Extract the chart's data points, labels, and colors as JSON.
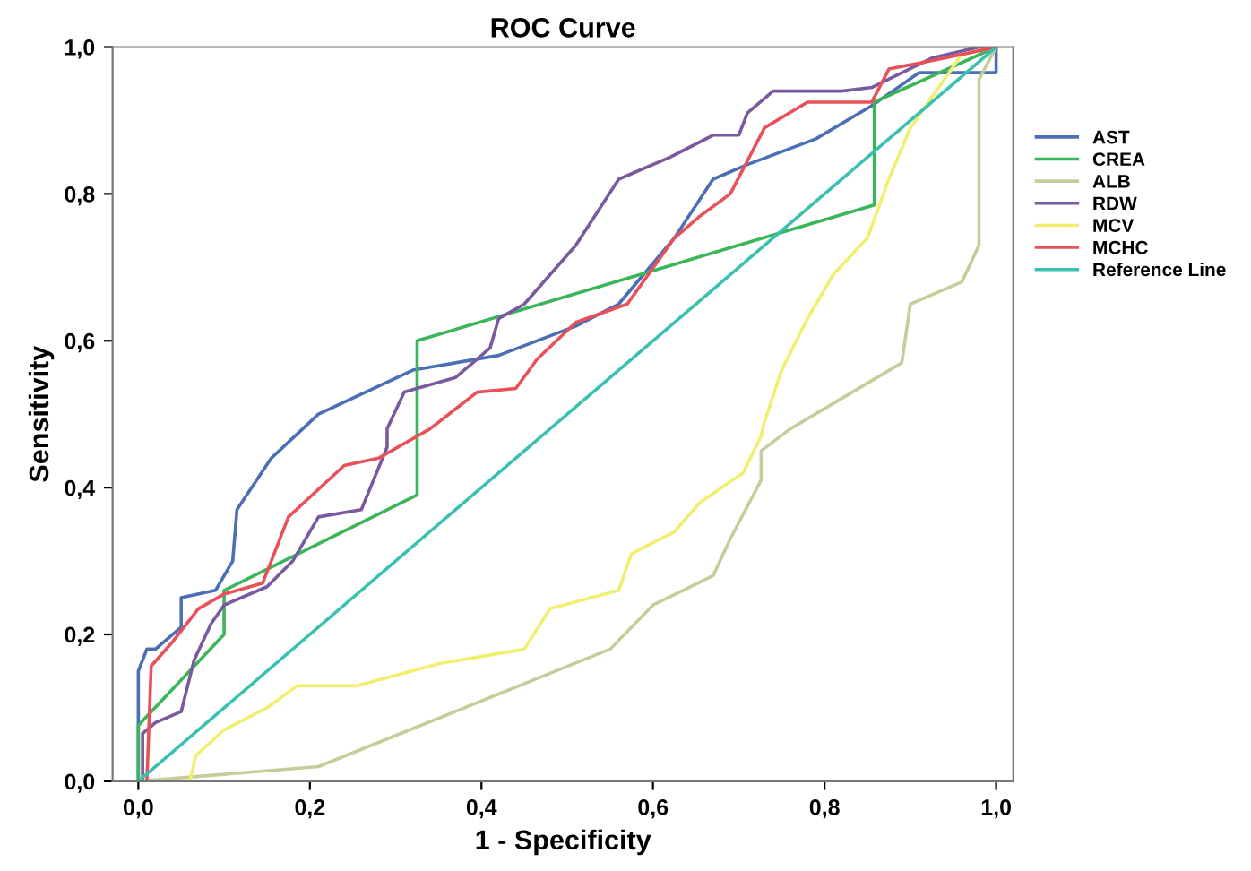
{
  "chart_data": {
    "type": "line",
    "title": "ROC Curve",
    "xlabel": "1 - Specificity",
    "ylabel": "Sensitivity",
    "xlim": [
      -0.03,
      1.02
    ],
    "ylim": [
      0,
      1
    ],
    "xticks": [
      {
        "value": 0,
        "label": "0,0"
      },
      {
        "value": 0.2,
        "label": "0,2"
      },
      {
        "value": 0.4,
        "label": "0,4"
      },
      {
        "value": 0.6,
        "label": "0,6"
      },
      {
        "value": 0.8,
        "label": "0,8"
      },
      {
        "value": 1,
        "label": "1,0"
      }
    ],
    "yticks": [
      {
        "value": 0,
        "label": "0,0"
      },
      {
        "value": 0.2,
        "label": "0,2"
      },
      {
        "value": 0.4,
        "label": "0,4"
      },
      {
        "value": 0.6,
        "label": "0,6"
      },
      {
        "value": 0.8,
        "label": "0,8"
      },
      {
        "value": 1,
        "label": "1,0"
      }
    ],
    "grid": false,
    "legend": "right",
    "marker": "none",
    "line_style": "solid",
    "series": [
      {
        "name": "AST",
        "color": "#4a6fb5",
        "x": [
          0,
          0,
          0.01,
          0.02,
          0.05,
          0.05,
          0.09,
          0.11,
          0.115,
          0.155,
          0.21,
          0.32,
          0.42,
          0.51,
          0.56,
          0.625,
          0.67,
          0.71,
          0.79,
          0.855,
          0.91,
          1,
          1
        ],
        "values": [
          0,
          0.15,
          0.18,
          0.18,
          0.21,
          0.25,
          0.26,
          0.3,
          0.37,
          0.44,
          0.5,
          0.56,
          0.58,
          0.62,
          0.65,
          0.74,
          0.82,
          0.84,
          0.875,
          0.92,
          0.965,
          0.965,
          1
        ]
      },
      {
        "name": "CREA",
        "color": "#3cb55a",
        "x": [
          0,
          0,
          0.1,
          0.1,
          0.325,
          0.325,
          0.858,
          0.858,
          1
        ],
        "values": [
          0,
          0.076,
          0.2,
          0.26,
          0.39,
          0.6,
          0.785,
          0.925,
          1
        ]
      },
      {
        "name": "ALB",
        "color": "#c8cc9a",
        "x": [
          0,
          0.21,
          0.465,
          0.55,
          0.6,
          0.67,
          0.69,
          0.726,
          0.726,
          0.76,
          0.89,
          0.9,
          0.96,
          0.98,
          0.98,
          1
        ],
        "values": [
          0,
          0.02,
          0.14,
          0.18,
          0.24,
          0.28,
          0.33,
          0.41,
          0.45,
          0.48,
          0.57,
          0.65,
          0.68,
          0.73,
          0.956,
          1
        ]
      },
      {
        "name": "RDW",
        "color": "#7a5a9e",
        "x": [
          0.005,
          0.005,
          0.02,
          0.05,
          0.065,
          0.085,
          0.1,
          0.15,
          0.18,
          0.21,
          0.26,
          0.29,
          0.29,
          0.31,
          0.37,
          0.41,
          0.42,
          0.45,
          0.51,
          0.56,
          0.62,
          0.67,
          0.7,
          0.71,
          0.74,
          0.82,
          0.855,
          0.925,
          0.98,
          1
        ],
        "values": [
          0,
          0.065,
          0.08,
          0.095,
          0.165,
          0.215,
          0.24,
          0.265,
          0.3,
          0.36,
          0.37,
          0.455,
          0.48,
          0.53,
          0.55,
          0.59,
          0.63,
          0.65,
          0.73,
          0.82,
          0.85,
          0.88,
          0.88,
          0.91,
          0.94,
          0.94,
          0.945,
          0.985,
          1,
          1
        ]
      },
      {
        "name": "MCV",
        "color": "#f0ef70",
        "x": [
          0,
          0.06,
          0.067,
          0.1,
          0.15,
          0.185,
          0.255,
          0.35,
          0.45,
          0.48,
          0.56,
          0.575,
          0.625,
          0.655,
          0.705,
          0.726,
          0.73,
          0.75,
          0.78,
          0.81,
          0.85,
          0.875,
          0.9,
          0.96,
          1
        ],
        "values": [
          0,
          0,
          0.035,
          0.07,
          0.1,
          0.13,
          0.13,
          0.16,
          0.18,
          0.235,
          0.26,
          0.31,
          0.34,
          0.38,
          0.42,
          0.47,
          0.49,
          0.56,
          0.63,
          0.69,
          0.74,
          0.82,
          0.89,
          0.99,
          1
        ]
      },
      {
        "name": "MCHC",
        "color": "#e8505a",
        "x": [
          0.01,
          0.015,
          0.04,
          0.07,
          0.1,
          0.145,
          0.175,
          0.24,
          0.28,
          0.34,
          0.395,
          0.44,
          0.465,
          0.51,
          0.57,
          0.625,
          0.655,
          0.69,
          0.73,
          0.78,
          0.855,
          0.875,
          0.94,
          1
        ],
        "values": [
          0,
          0.157,
          0.19,
          0.235,
          0.255,
          0.27,
          0.36,
          0.43,
          0.44,
          0.48,
          0.53,
          0.535,
          0.575,
          0.625,
          0.65,
          0.74,
          0.77,
          0.8,
          0.89,
          0.925,
          0.925,
          0.97,
          0.985,
          1
        ]
      },
      {
        "name": "Reference Line",
        "color": "#3cc0b0",
        "x": [
          0,
          1
        ],
        "values": [
          0,
          1
        ]
      }
    ]
  }
}
